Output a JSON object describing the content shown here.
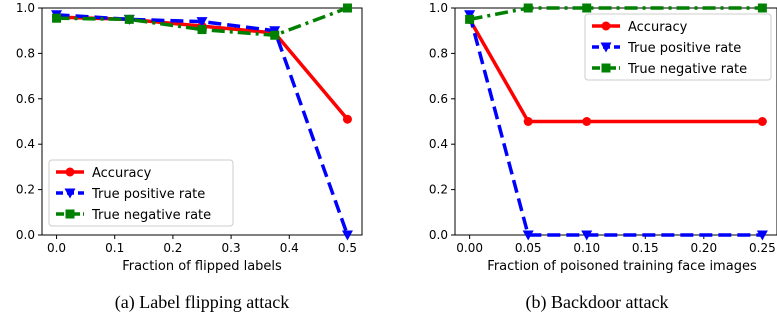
{
  "chart_data": [
    {
      "type": "line",
      "caption": "(a) Label flipping attack",
      "xlabel": "Fraction of flipped labels",
      "ylabel": "",
      "x": [
        0.0,
        0.125,
        0.25,
        0.375,
        0.5
      ],
      "xlim": [
        -0.025,
        0.525
      ],
      "ylim": [
        0.0,
        1.0
      ],
      "xticks": [
        0.0,
        0.1,
        0.2,
        0.3,
        0.4,
        0.5
      ],
      "xtick_labels": [
        "0.0",
        "0.1",
        "0.2",
        "0.3",
        "0.4",
        "0.5"
      ],
      "yticks": [
        0.0,
        0.2,
        0.4,
        0.6,
        0.8,
        1.0
      ],
      "ytick_labels": [
        "0.0",
        "0.2",
        "0.4",
        "0.6",
        "0.8",
        "1.0"
      ],
      "legend_position": "lower-left",
      "series": [
        {
          "name": "Accuracy",
          "values": [
            0.96,
            0.95,
            0.92,
            0.89,
            0.51
          ],
          "color": "#ff0000",
          "dash": "solid",
          "marker": "circle"
        },
        {
          "name": "True positive rate",
          "values": [
            0.97,
            0.95,
            0.94,
            0.9,
            0.0
          ],
          "color": "#0000ff",
          "dash": "dashed",
          "marker": "triangle-down"
        },
        {
          "name": "True negative rate",
          "values": [
            0.955,
            0.95,
            0.905,
            0.88,
            1.0
          ],
          "color": "#008000",
          "dash": "dashdot",
          "marker": "square"
        }
      ]
    },
    {
      "type": "line",
      "caption": "(b) Backdoor attack",
      "xlabel": "Fraction of poisoned training face images",
      "ylabel": "",
      "x": [
        0.0,
        0.05,
        0.1,
        0.25
      ],
      "xlim": [
        -0.0125,
        0.2625
      ],
      "ylim": [
        0.0,
        1.0
      ],
      "xticks": [
        0.0,
        0.05,
        0.1,
        0.15,
        0.2,
        0.25
      ],
      "xtick_labels": [
        "0.00",
        "0.05",
        "0.10",
        "0.15",
        "0.20",
        "0.25"
      ],
      "yticks": [
        0.0,
        0.2,
        0.4,
        0.6,
        0.8,
        1.0
      ],
      "ytick_labels": [
        "0.0",
        "0.2",
        "0.4",
        "0.6",
        "0.8",
        "1.0"
      ],
      "legend_position": "top-right",
      "series": [
        {
          "name": "Accuracy",
          "values": [
            0.95,
            0.5,
            0.5,
            0.5
          ],
          "color": "#ff0000",
          "dash": "solid",
          "marker": "circle"
        },
        {
          "name": "True positive rate",
          "values": [
            0.97,
            0.0,
            0.0,
            0.0
          ],
          "color": "#0000ff",
          "dash": "dashed",
          "marker": "triangle-down"
        },
        {
          "name": "True negative rate",
          "values": [
            0.95,
            1.0,
            1.0,
            1.0
          ],
          "color": "#008000",
          "dash": "dashdot",
          "marker": "square"
        }
      ]
    }
  ]
}
